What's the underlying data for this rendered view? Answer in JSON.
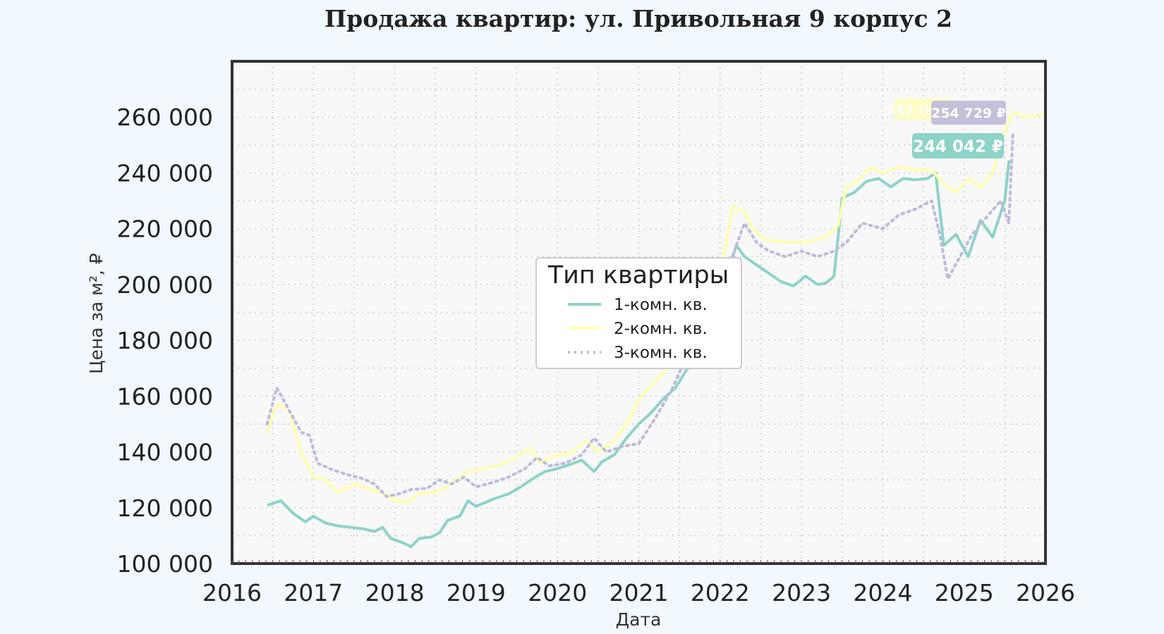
{
  "chart_data": {
    "type": "line",
    "title": "Продажа квартир: ул. Привольная 9 корпус 2",
    "xlabel": "Дата",
    "ylabel": "Цена за м², ₽",
    "xlim": [
      2016,
      2026
    ],
    "ylim": [
      100000,
      280000
    ],
    "x_ticks": [
      "2016",
      "2017",
      "2018",
      "2019",
      "2020",
      "2021",
      "2022",
      "2023",
      "2024",
      "2025",
      "2026"
    ],
    "y_ticks": [
      {
        "value": 100000,
        "label": "100 000"
      },
      {
        "value": 120000,
        "label": "120 000"
      },
      {
        "value": 140000,
        "label": "140 000"
      },
      {
        "value": 160000,
        "label": "160 000"
      },
      {
        "value": 180000,
        "label": "180 000"
      },
      {
        "value": 200000,
        "label": "200 000"
      },
      {
        "value": 220000,
        "label": "220 000"
      },
      {
        "value": 240000,
        "label": "240 000"
      },
      {
        "value": 260000,
        "label": "260 000"
      }
    ],
    "grid": true,
    "legend": {
      "title": "Тип квартиры",
      "position": "center"
    },
    "series": [
      {
        "name": "1-комн. кв.",
        "color": "#8dd3c7",
        "style": "solid",
        "end_label": "244 042 ₽",
        "points": [
          [
            2016.45,
            121000
          ],
          [
            2016.6,
            122500
          ],
          [
            2016.75,
            118000
          ],
          [
            2016.9,
            115000
          ],
          [
            2017.0,
            117000
          ],
          [
            2017.15,
            114500
          ],
          [
            2017.3,
            113500
          ],
          [
            2017.45,
            113000
          ],
          [
            2017.6,
            112500
          ],
          [
            2017.75,
            111500
          ],
          [
            2017.85,
            113000
          ],
          [
            2017.95,
            109000
          ],
          [
            2018.1,
            107500
          ],
          [
            2018.2,
            106000
          ],
          [
            2018.3,
            109000
          ],
          [
            2018.45,
            109500
          ],
          [
            2018.55,
            111000
          ],
          [
            2018.65,
            115500
          ],
          [
            2018.8,
            117000
          ],
          [
            2018.9,
            122500
          ],
          [
            2019.0,
            120500
          ],
          [
            2019.2,
            123000
          ],
          [
            2019.4,
            125000
          ],
          [
            2019.55,
            127500
          ],
          [
            2019.7,
            130500
          ],
          [
            2019.85,
            133000
          ],
          [
            2020.0,
            134000
          ],
          [
            2020.15,
            135500
          ],
          [
            2020.3,
            137000
          ],
          [
            2020.45,
            133000
          ],
          [
            2020.55,
            136500
          ],
          [
            2020.7,
            139000
          ],
          [
            2020.85,
            145000
          ],
          [
            2021.0,
            150000
          ],
          [
            2021.15,
            154000
          ],
          [
            2021.3,
            159000
          ],
          [
            2021.45,
            163000
          ],
          [
            2021.6,
            170000
          ],
          [
            2021.75,
            180000
          ],
          [
            2021.9,
            190000
          ],
          [
            2022.0,
            197000
          ],
          [
            2022.1,
            205000
          ],
          [
            2022.2,
            214000
          ],
          [
            2022.3,
            210000
          ],
          [
            2022.45,
            207000
          ],
          [
            2022.6,
            204000
          ],
          [
            2022.75,
            201000
          ],
          [
            2022.9,
            199500
          ],
          [
            2023.05,
            203000
          ],
          [
            2023.2,
            200000
          ],
          [
            2023.3,
            200500
          ],
          [
            2023.4,
            203000
          ],
          [
            2023.5,
            231000
          ],
          [
            2023.65,
            233000
          ],
          [
            2023.8,
            237000
          ],
          [
            2023.95,
            238000
          ],
          [
            2024.1,
            235000
          ],
          [
            2024.25,
            238000
          ],
          [
            2024.4,
            237500
          ],
          [
            2024.55,
            238000
          ],
          [
            2024.65,
            240000
          ],
          [
            2024.75,
            214000
          ],
          [
            2024.9,
            218000
          ],
          [
            2025.05,
            210000
          ],
          [
            2025.2,
            223000
          ],
          [
            2025.35,
            217000
          ],
          [
            2025.5,
            230000
          ],
          [
            2025.55,
            244042
          ]
        ]
      },
      {
        "name": "2-комн. кв.",
        "color": "#ffffb3",
        "style": "solid-marker",
        "end_label": "261 000 ₽",
        "points": [
          [
            2016.43,
            147000
          ],
          [
            2016.55,
            157000
          ],
          [
            2016.7,
            155000
          ],
          [
            2016.85,
            140000
          ],
          [
            2017.0,
            131000
          ],
          [
            2017.15,
            130000
          ],
          [
            2017.3,
            125500
          ],
          [
            2017.5,
            128500
          ],
          [
            2017.7,
            126500
          ],
          [
            2017.85,
            125500
          ],
          [
            2018.0,
            122500
          ],
          [
            2018.15,
            122000
          ],
          [
            2018.3,
            125000
          ],
          [
            2018.5,
            125500
          ],
          [
            2018.65,
            127500
          ],
          [
            2018.8,
            131000
          ],
          [
            2018.9,
            133000
          ],
          [
            2019.1,
            134000
          ],
          [
            2019.3,
            135500
          ],
          [
            2019.5,
            138000
          ],
          [
            2019.65,
            141500
          ],
          [
            2019.8,
            136000
          ],
          [
            2019.95,
            138500
          ],
          [
            2020.15,
            139500
          ],
          [
            2020.35,
            144000
          ],
          [
            2020.5,
            140000
          ],
          [
            2020.7,
            144000
          ],
          [
            2020.85,
            150000
          ],
          [
            2021.0,
            159000
          ],
          [
            2021.2,
            165000
          ],
          [
            2021.4,
            172000
          ],
          [
            2021.6,
            181000
          ],
          [
            2021.8,
            190000
          ],
          [
            2022.0,
            201000
          ],
          [
            2022.15,
            228000
          ],
          [
            2022.3,
            226000
          ],
          [
            2022.4,
            220000
          ],
          [
            2022.55,
            216000
          ],
          [
            2022.7,
            215500
          ],
          [
            2022.9,
            215000
          ],
          [
            2023.1,
            215500
          ],
          [
            2023.3,
            217000
          ],
          [
            2023.45,
            221000
          ],
          [
            2023.55,
            235000
          ],
          [
            2023.7,
            237000
          ],
          [
            2023.85,
            242000
          ],
          [
            2024.0,
            240000
          ],
          [
            2024.2,
            242000
          ],
          [
            2024.4,
            241000
          ],
          [
            2024.6,
            241000
          ],
          [
            2024.75,
            236000
          ],
          [
            2024.9,
            233000
          ],
          [
            2025.05,
            238000
          ],
          [
            2025.2,
            235000
          ],
          [
            2025.35,
            240000
          ],
          [
            2025.5,
            255000
          ],
          [
            2025.6,
            262000
          ],
          [
            2025.75,
            260000
          ],
          [
            2026.0,
            261000
          ]
        ]
      },
      {
        "name": "3-комн. кв.",
        "color": "#bebada",
        "style": "dotted",
        "end_label": "254 729 ₽",
        "points": [
          [
            2016.43,
            150000
          ],
          [
            2016.55,
            163000
          ],
          [
            2016.7,
            155000
          ],
          [
            2016.85,
            147000
          ],
          [
            2016.95,
            146000
          ],
          [
            2017.05,
            136000
          ],
          [
            2017.2,
            134000
          ],
          [
            2017.4,
            132000
          ],
          [
            2017.6,
            130500
          ],
          [
            2017.75,
            128500
          ],
          [
            2017.9,
            124000
          ],
          [
            2018.05,
            125000
          ],
          [
            2018.2,
            126500
          ],
          [
            2018.4,
            127000
          ],
          [
            2018.55,
            130000
          ],
          [
            2018.7,
            128500
          ],
          [
            2018.85,
            131000
          ],
          [
            2019.0,
            127500
          ],
          [
            2019.2,
            129000
          ],
          [
            2019.4,
            131000
          ],
          [
            2019.6,
            134000
          ],
          [
            2019.75,
            138000
          ],
          [
            2019.9,
            135000
          ],
          [
            2020.1,
            136000
          ],
          [
            2020.3,
            139000
          ],
          [
            2020.45,
            145000
          ],
          [
            2020.6,
            140000
          ],
          [
            2020.8,
            142000
          ],
          [
            2021.0,
            143000
          ],
          [
            2021.2,
            152000
          ],
          [
            2021.4,
            162000
          ],
          [
            2021.6,
            175000
          ],
          [
            2021.8,
            188000
          ],
          [
            2022.0,
            197000
          ],
          [
            2022.15,
            210000
          ],
          [
            2022.3,
            222000
          ],
          [
            2022.45,
            215000
          ],
          [
            2022.6,
            212000
          ],
          [
            2022.8,
            210000
          ],
          [
            2023.0,
            212000
          ],
          [
            2023.2,
            210000
          ],
          [
            2023.4,
            212000
          ],
          [
            2023.55,
            215000
          ],
          [
            2023.75,
            222000
          ],
          [
            2024.0,
            220000
          ],
          [
            2024.2,
            225000
          ],
          [
            2024.4,
            227000
          ],
          [
            2024.6,
            230000
          ],
          [
            2024.7,
            218000
          ],
          [
            2024.8,
            202000
          ],
          [
            2024.95,
            210000
          ],
          [
            2025.1,
            218000
          ],
          [
            2025.3,
            225000
          ],
          [
            2025.45,
            230000
          ],
          [
            2025.55,
            222000
          ],
          [
            2025.6,
            254729
          ]
        ]
      }
    ]
  }
}
